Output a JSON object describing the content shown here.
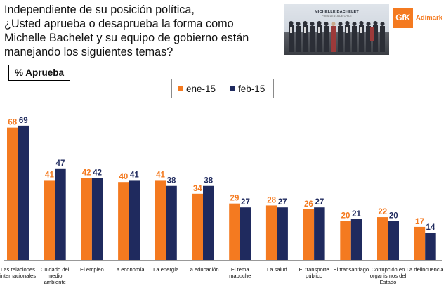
{
  "header": {
    "question_lines": [
      "Independiente de su posición política,",
      "¿Usted aprueba o desaprueba la forma como",
      "Michelle Bachelet y su equipo de gobierno están",
      "manejando los siguientes temas?"
    ],
    "photo_banner": "MICHELLE BACHELET",
    "photo_sub": "PRESIDENTA DE CHILE",
    "logo_mark": "GfK",
    "logo_text": "Adimark"
  },
  "metric_label": "% Aprueba",
  "colors": {
    "ene": "#f47a20",
    "feb": "#1f2a5e",
    "baseline": "#999999"
  },
  "chart_data": {
    "type": "bar",
    "title": "",
    "xlabel": "",
    "ylabel": "% Aprueba",
    "ylim": [
      0,
      75
    ],
    "legend_position": "top-center",
    "grid": false,
    "categories": [
      [
        "Las relaciones",
        "internacionales"
      ],
      [
        "Cuidado del",
        "medio",
        "ambiente"
      ],
      [
        "El empleo"
      ],
      [
        "La economía"
      ],
      [
        "La energía"
      ],
      [
        "La educación"
      ],
      [
        "El tema",
        "mapuche"
      ],
      [
        "La salud"
      ],
      [
        "El transporte",
        "público"
      ],
      [
        "El transantiago"
      ],
      [
        "Corrupción en",
        "organismos del",
        "Estado"
      ],
      [
        "La delincuencia"
      ]
    ],
    "series": [
      {
        "name": "ene-15",
        "color": "#f47a20",
        "values": [
          68,
          41,
          42,
          40,
          41,
          34,
          29,
          28,
          26,
          20,
          22,
          17
        ]
      },
      {
        "name": "feb-15",
        "color": "#1f2a5e",
        "values": [
          69,
          47,
          42,
          41,
          38,
          38,
          27,
          27,
          27,
          21,
          20,
          14
        ]
      }
    ]
  }
}
